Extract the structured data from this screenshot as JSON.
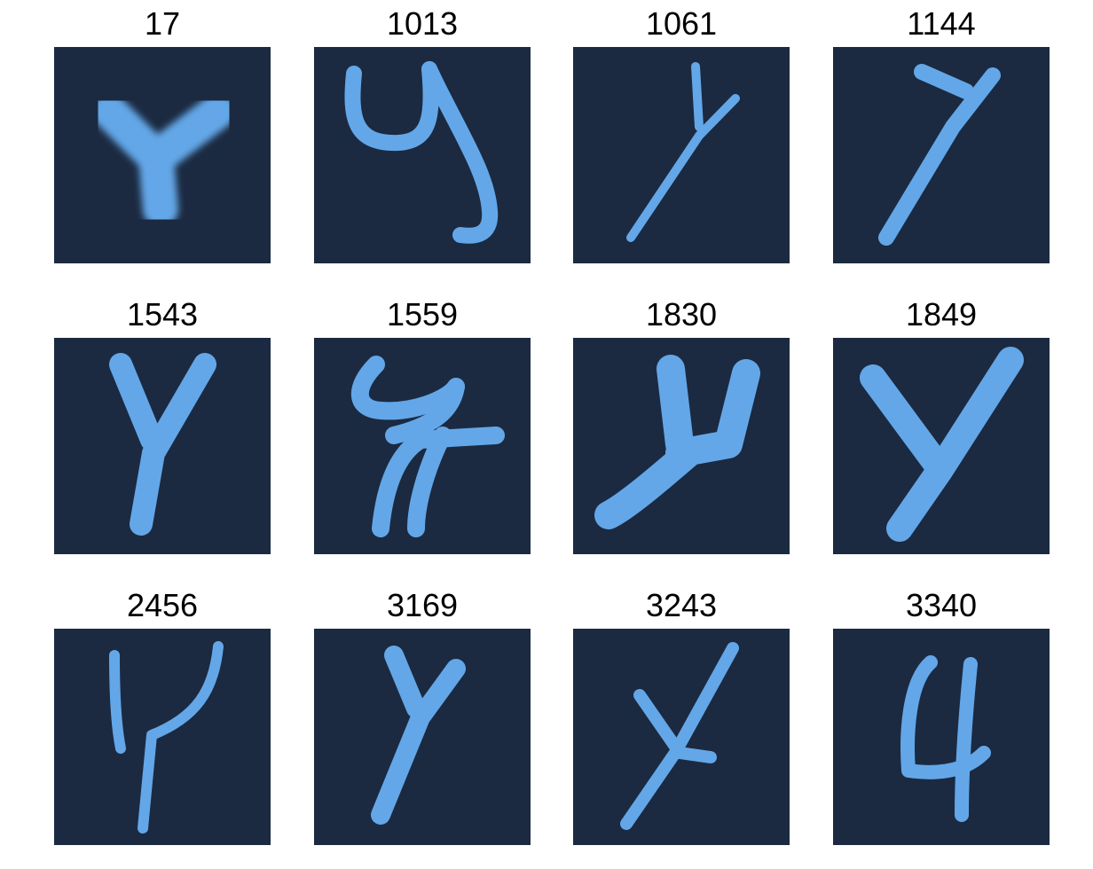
{
  "colors": {
    "background": "#ffffff",
    "tile": "#1b2a41",
    "glyph": "#63a7e8",
    "label": "#000000"
  },
  "samples": [
    {
      "label": "17"
    },
    {
      "label": "1013"
    },
    {
      "label": "1061"
    },
    {
      "label": "1144"
    },
    {
      "label": "1543"
    },
    {
      "label": "1559"
    },
    {
      "label": "1830"
    },
    {
      "label": "1849"
    },
    {
      "label": "2456"
    },
    {
      "label": "3169"
    },
    {
      "label": "3243"
    },
    {
      "label": "3340"
    }
  ]
}
